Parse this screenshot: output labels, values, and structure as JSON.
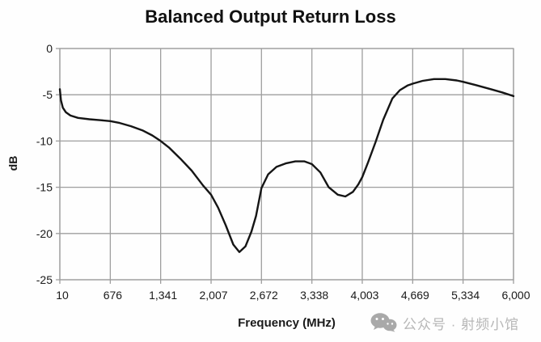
{
  "title": "Balanced Output Return Loss",
  "watermark": {
    "icon": "wechat-icon",
    "text": "公众号 · 射频小馆",
    "color": "#b7b7b7",
    "icon_color": "#a9a9a9"
  },
  "chart_data": {
    "type": "line",
    "title": "Balanced Output Return Loss",
    "xlabel": "Frequency (MHz)",
    "ylabel": "dB",
    "xlim": [
      10,
      6000
    ],
    "ylim": [
      -25,
      0
    ],
    "xticks": [
      10,
      676,
      1341,
      2007,
      2672,
      3338,
      4003,
      4669,
      5334,
      6000
    ],
    "xticklabels": [
      "10",
      "676",
      "1,341",
      "2,007",
      "2,672",
      "3,338",
      "4,003",
      "4,669",
      "5,334",
      "6,000"
    ],
    "yticks": [
      0,
      -5,
      -10,
      -15,
      -20,
      -25
    ],
    "yticklabels": [
      "0",
      "-5",
      "-10",
      "-15",
      "-20",
      "-25"
    ],
    "grid": true,
    "legend": false,
    "colors": {
      "line": "#151515",
      "grid": "#9e9e9e",
      "tick_text": "#1a1a1a",
      "background": "#fefefe"
    },
    "series": [
      {
        "name": "Balanced Output Return Loss",
        "points": [
          [
            10,
            -4.4
          ],
          [
            25,
            -5.6
          ],
          [
            50,
            -6.4
          ],
          [
            90,
            -6.9
          ],
          [
            150,
            -7.25
          ],
          [
            250,
            -7.5
          ],
          [
            400,
            -7.65
          ],
          [
            550,
            -7.75
          ],
          [
            676,
            -7.85
          ],
          [
            800,
            -8.05
          ],
          [
            950,
            -8.4
          ],
          [
            1100,
            -8.85
          ],
          [
            1230,
            -9.4
          ],
          [
            1341,
            -10.0
          ],
          [
            1450,
            -10.7
          ],
          [
            1600,
            -11.9
          ],
          [
            1750,
            -13.2
          ],
          [
            1900,
            -14.8
          ],
          [
            2007,
            -15.8
          ],
          [
            2100,
            -17.2
          ],
          [
            2200,
            -19.1
          ],
          [
            2300,
            -21.2
          ],
          [
            2380,
            -22.0
          ],
          [
            2460,
            -21.4
          ],
          [
            2540,
            -19.8
          ],
          [
            2600,
            -18.1
          ],
          [
            2672,
            -15.1
          ],
          [
            2760,
            -13.6
          ],
          [
            2870,
            -12.8
          ],
          [
            3000,
            -12.4
          ],
          [
            3120,
            -12.2
          ],
          [
            3240,
            -12.2
          ],
          [
            3338,
            -12.5
          ],
          [
            3450,
            -13.4
          ],
          [
            3560,
            -15.0
          ],
          [
            3680,
            -15.8
          ],
          [
            3780,
            -16.0
          ],
          [
            3880,
            -15.5
          ],
          [
            3950,
            -14.7
          ],
          [
            4003,
            -13.9
          ],
          [
            4080,
            -12.3
          ],
          [
            4180,
            -10.1
          ],
          [
            4280,
            -7.7
          ],
          [
            4400,
            -5.4
          ],
          [
            4500,
            -4.5
          ],
          [
            4600,
            -4.0
          ],
          [
            4669,
            -3.8
          ],
          [
            4800,
            -3.5
          ],
          [
            4950,
            -3.3
          ],
          [
            5100,
            -3.3
          ],
          [
            5250,
            -3.45
          ],
          [
            5334,
            -3.6
          ],
          [
            5500,
            -3.95
          ],
          [
            5700,
            -4.4
          ],
          [
            5850,
            -4.75
          ],
          [
            6000,
            -5.15
          ]
        ]
      }
    ]
  }
}
